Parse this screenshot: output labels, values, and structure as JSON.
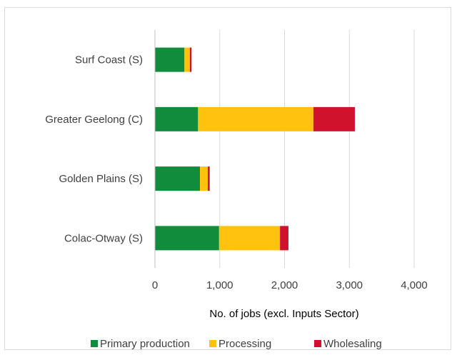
{
  "chart_data": {
    "type": "bar",
    "orientation": "horizontal",
    "stacked": true,
    "categories": [
      "Surf Coast (S)",
      "Greater Geelong (C)",
      "Golden Plains (S)",
      "Colac-Otway (S)"
    ],
    "series": [
      {
        "name": "Primary production",
        "color": "#108c3c",
        "values": [
          455,
          665,
          695,
          990
        ]
      },
      {
        "name": "Processing",
        "color": "#ffc20e",
        "values": [
          85,
          1780,
          120,
          940
        ]
      },
      {
        "name": "Wholesaling",
        "color": "#d0122c",
        "values": [
          25,
          640,
          30,
          130
        ]
      }
    ],
    "xlabel": "No. of jobs (excl. Inputs Sector)",
    "xlim": [
      0,
      4000
    ],
    "xticks": [
      0,
      1000,
      2000,
      3000,
      4000
    ],
    "xtick_labels": [
      "0",
      "1,000",
      "2,000",
      "3,000",
      "4,000"
    ],
    "grid": "vertical",
    "legend": "bottom"
  }
}
